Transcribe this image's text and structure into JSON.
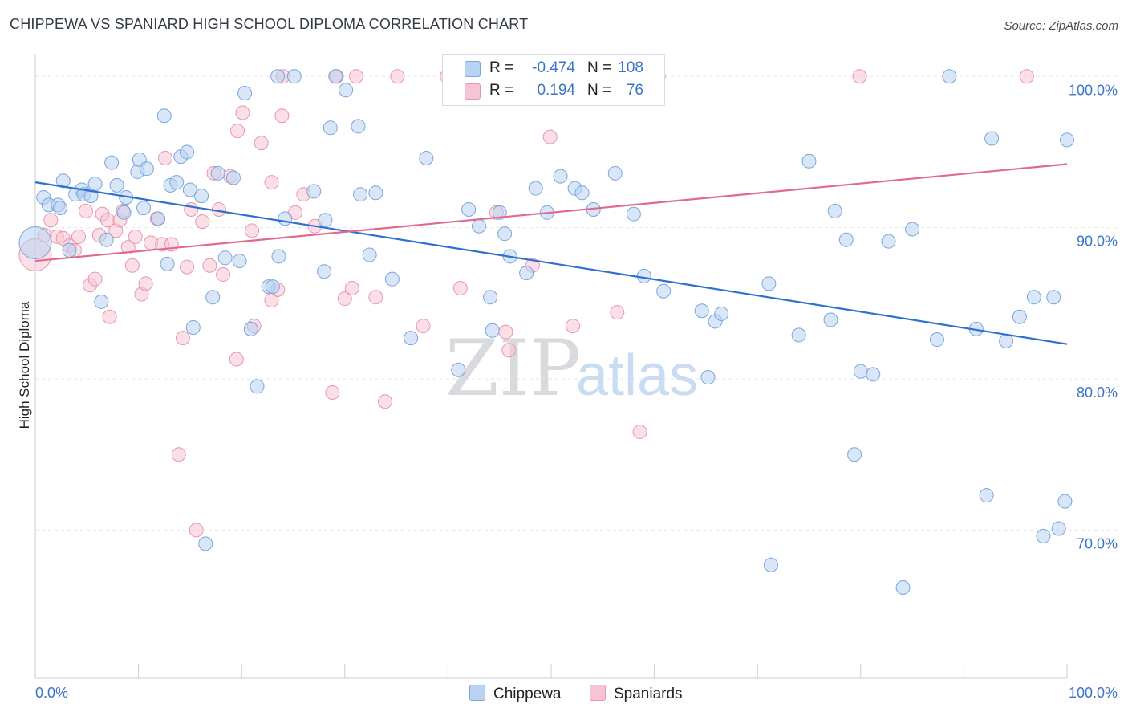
{
  "title": "CHIPPEWA VS SPANIARD HIGH SCHOOL DIPLOMA CORRELATION CHART",
  "source": "Source: ZipAtlas.com",
  "watermark": {
    "zip": "ZIP",
    "atlas": "atlas"
  },
  "legend": {
    "rows": [
      {
        "r_label": "R =",
        "r_value": "-0.474",
        "n_label": "N =",
        "n_value": "108"
      },
      {
        "r_label": "R =",
        "r_value": "0.194",
        "n_label": "N =",
        "n_value": "76"
      }
    ]
  },
  "colors": {
    "chippewa_fill": "#b8d2f2",
    "chippewa_stroke": "#7aa6dc",
    "chippewa_line": "#2f6fd1",
    "spaniards_fill": "#f7c4d3",
    "spaniards_stroke": "#e995b0",
    "spaniards_line": "#e0698f",
    "axis_text": "#3b73c8",
    "grid": "#e3e6ea"
  },
  "chart_data": {
    "type": "scatter",
    "title": "CHIPPEWA VS SPANIARD HIGH SCHOOL DIPLOMA CORRELATION CHART",
    "xlabel": "",
    "ylabel": "High School Diploma",
    "xlim": [
      0,
      100
    ],
    "ylim": [
      60.2,
      101.5
    ],
    "x_tick_labels": [
      "0.0%",
      "100.0%"
    ],
    "y_ticks": [
      70,
      80,
      90,
      100
    ],
    "y_tick_labels": [
      "70.0%",
      "80.0%",
      "90.0%",
      "100.0%"
    ],
    "grid": true,
    "legend_position": "top-center",
    "series": [
      {
        "name": "Chippewa",
        "r": -0.474,
        "n": 108,
        "trend": {
          "x": [
            0,
            100
          ],
          "y": [
            93.0,
            82.3
          ]
        },
        "points": [
          [
            0,
            89.0
          ],
          [
            0.8,
            92.0
          ],
          [
            1.3,
            91.5
          ],
          [
            2.2,
            91.5
          ],
          [
            2.4,
            91.3
          ],
          [
            2.7,
            93.1
          ],
          [
            3.3,
            88.5
          ],
          [
            3.9,
            92.2
          ],
          [
            4.5,
            92.5
          ],
          [
            4.7,
            92.2
          ],
          [
            5.4,
            92.1
          ],
          [
            5.8,
            92.9
          ],
          [
            6.4,
            85.1
          ],
          [
            6.9,
            89.2
          ],
          [
            7.4,
            94.3
          ],
          [
            7.9,
            92.8
          ],
          [
            8.6,
            91.0
          ],
          [
            8.8,
            92.0
          ],
          [
            9.9,
            93.7
          ],
          [
            10.1,
            94.5
          ],
          [
            10.5,
            91.3
          ],
          [
            10.8,
            93.9
          ],
          [
            11.9,
            90.6
          ],
          [
            12.5,
            97.4
          ],
          [
            12.8,
            87.6
          ],
          [
            13.1,
            92.8
          ],
          [
            13.7,
            93.0
          ],
          [
            14.1,
            94.7
          ],
          [
            14.7,
            95.0
          ],
          [
            15.0,
            92.5
          ],
          [
            15.3,
            83.4
          ],
          [
            16.1,
            92.1
          ],
          [
            16.5,
            69.1
          ],
          [
            17.2,
            85.4
          ],
          [
            17.7,
            93.6
          ],
          [
            18.4,
            88.0
          ],
          [
            19.2,
            93.3
          ],
          [
            19.8,
            87.8
          ],
          [
            20.3,
            98.9
          ],
          [
            20.9,
            83.3
          ],
          [
            21.5,
            79.5
          ],
          [
            22.6,
            86.1
          ],
          [
            23.0,
            86.1
          ],
          [
            23.5,
            100.0
          ],
          [
            23.6,
            88.1
          ],
          [
            24.2,
            90.6
          ],
          [
            25.1,
            100.0
          ],
          [
            27.0,
            92.4
          ],
          [
            28.0,
            87.1
          ],
          [
            28.1,
            90.5
          ],
          [
            28.6,
            96.6
          ],
          [
            29.1,
            100.0
          ],
          [
            30.1,
            99.1
          ],
          [
            31.3,
            96.7
          ],
          [
            31.5,
            92.2
          ],
          [
            32.4,
            88.2
          ],
          [
            33.0,
            92.3
          ],
          [
            34.6,
            86.6
          ],
          [
            36.4,
            82.7
          ],
          [
            37.9,
            94.6
          ],
          [
            41.0,
            80.6
          ],
          [
            42.0,
            91.2
          ],
          [
            43.0,
            90.1
          ],
          [
            44.1,
            85.4
          ],
          [
            44.3,
            83.2
          ],
          [
            45.0,
            91.0
          ],
          [
            45.5,
            89.6
          ],
          [
            46.0,
            88.1
          ],
          [
            47.6,
            87.0
          ],
          [
            48.5,
            92.6
          ],
          [
            49.6,
            91.0
          ],
          [
            50.9,
            93.4
          ],
          [
            52.3,
            92.6
          ],
          [
            53.0,
            92.3
          ],
          [
            54.1,
            91.2
          ],
          [
            56.2,
            93.6
          ],
          [
            58.0,
            90.9
          ],
          [
            59.0,
            86.8
          ],
          [
            60.9,
            85.8
          ],
          [
            64.6,
            84.5
          ],
          [
            65.2,
            80.1
          ],
          [
            65.9,
            83.8
          ],
          [
            66.5,
            84.3
          ],
          [
            71.1,
            86.3
          ],
          [
            71.3,
            67.7
          ],
          [
            74.0,
            82.9
          ],
          [
            75.0,
            94.4
          ],
          [
            77.1,
            83.9
          ],
          [
            77.5,
            91.1
          ],
          [
            78.6,
            89.2
          ],
          [
            79.4,
            75.0
          ],
          [
            80.0,
            80.5
          ],
          [
            81.2,
            80.3
          ],
          [
            82.7,
            89.1
          ],
          [
            85.0,
            89.9
          ],
          [
            87.4,
            82.6
          ],
          [
            88.6,
            100.0
          ],
          [
            91.2,
            83.3
          ],
          [
            92.2,
            72.3
          ],
          [
            92.7,
            95.9
          ],
          [
            94.1,
            82.5
          ],
          [
            95.4,
            84.1
          ],
          [
            96.8,
            85.4
          ],
          [
            97.7,
            69.6
          ],
          [
            98.7,
            85.4
          ],
          [
            99.2,
            70.1
          ],
          [
            99.8,
            71.9
          ],
          [
            100.0,
            95.8
          ],
          [
            84.1,
            66.2
          ]
        ]
      },
      {
        "name": "Spaniards",
        "r": 0.194,
        "n": 76,
        "trend": {
          "x": [
            0,
            100
          ],
          "y": [
            87.8,
            94.2
          ]
        },
        "points": [
          [
            0,
            88.2
          ],
          [
            0.9,
            89.5
          ],
          [
            1.5,
            90.5
          ],
          [
            2.1,
            89.4
          ],
          [
            2.7,
            89.3
          ],
          [
            3.3,
            88.8
          ],
          [
            3.8,
            88.5
          ],
          [
            4.2,
            89.4
          ],
          [
            4.9,
            91.1
          ],
          [
            5.3,
            86.2
          ],
          [
            5.8,
            86.6
          ],
          [
            6.2,
            89.5
          ],
          [
            6.5,
            90.9
          ],
          [
            7.0,
            90.5
          ],
          [
            7.2,
            84.1
          ],
          [
            7.8,
            89.8
          ],
          [
            8.2,
            90.5
          ],
          [
            8.5,
            91.1
          ],
          [
            9.0,
            88.7
          ],
          [
            9.4,
            87.5
          ],
          [
            9.7,
            89.4
          ],
          [
            10.3,
            85.6
          ],
          [
            10.7,
            86.3
          ],
          [
            11.2,
            89.0
          ],
          [
            11.8,
            90.6
          ],
          [
            12.3,
            88.9
          ],
          [
            12.6,
            94.6
          ],
          [
            13.2,
            88.9
          ],
          [
            13.9,
            75.0
          ],
          [
            14.3,
            82.7
          ],
          [
            14.7,
            87.4
          ],
          [
            15.1,
            91.2
          ],
          [
            15.6,
            70.0
          ],
          [
            16.2,
            90.4
          ],
          [
            16.9,
            87.5
          ],
          [
            17.3,
            93.6
          ],
          [
            17.8,
            91.2
          ],
          [
            18.2,
            86.9
          ],
          [
            18.9,
            93.4
          ],
          [
            19.5,
            81.3
          ],
          [
            19.6,
            96.4
          ],
          [
            20.1,
            97.6
          ],
          [
            21.0,
            89.8
          ],
          [
            21.2,
            83.5
          ],
          [
            21.9,
            95.6
          ],
          [
            22.9,
            85.2
          ],
          [
            22.9,
            93.0
          ],
          [
            23.5,
            85.9
          ],
          [
            23.9,
            97.4
          ],
          [
            24.0,
            100.0
          ],
          [
            25.2,
            91.0
          ],
          [
            26.0,
            92.2
          ],
          [
            27.1,
            90.1
          ],
          [
            28.8,
            79.1
          ],
          [
            29.2,
            100.0
          ],
          [
            30.0,
            85.3
          ],
          [
            30.7,
            86.0
          ],
          [
            31.1,
            100.0
          ],
          [
            33.0,
            85.4
          ],
          [
            33.9,
            78.5
          ],
          [
            35.1,
            100.0
          ],
          [
            37.6,
            83.5
          ],
          [
            39.9,
            100.0
          ],
          [
            41.2,
            86.0
          ],
          [
            44.7,
            91.0
          ],
          [
            45.6,
            83.1
          ],
          [
            45.9,
            81.9
          ],
          [
            48.2,
            87.5
          ],
          [
            49.9,
            96.0
          ],
          [
            52.1,
            83.5
          ],
          [
            56.4,
            84.4
          ],
          [
            58.6,
            76.5
          ],
          [
            60.4,
            100.0
          ],
          [
            79.9,
            100.0
          ],
          [
            96.1,
            100.0
          ],
          [
            46.1,
            100.0
          ]
        ]
      }
    ]
  },
  "bottom_legend": [
    {
      "label": "Chippewa"
    },
    {
      "label": "Spaniards"
    }
  ]
}
